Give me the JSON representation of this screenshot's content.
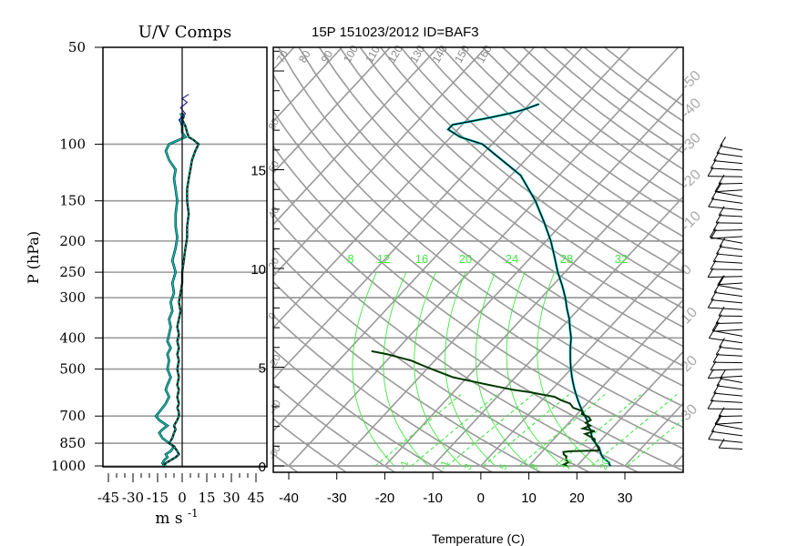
{
  "colors": {
    "grid": "#9a9a9a",
    "u_component": "#00c8c8",
    "v_component": "#003020",
    "wind_trace_blue": "#1a1aa0",
    "temperature": "#000000",
    "temperature_trace_cyan": "#00c8c8",
    "dewpoint": "#003800",
    "mixing_ratio": "#40e840",
    "barb": "#000000"
  },
  "chart_data": [
    {
      "type": "line",
      "name": "uv-components",
      "title": "U/V Comps",
      "xlabel": "m s",
      "xlabel_sup": "-1",
      "ylabel": "P (hPa)",
      "y_scale": "log",
      "xlim": [
        -50,
        50
      ],
      "ylim": [
        1000,
        50
      ],
      "x_tick_labels": [
        "-45",
        "-30",
        "-15",
        "0",
        "15",
        "30",
        "45"
      ],
      "x_ticks": [
        -45,
        -30,
        -15,
        0,
        15,
        30,
        45
      ],
      "y_tick_labels": [
        "50",
        "100",
        "150",
        "200",
        "250",
        "300",
        "400",
        "500",
        "700",
        "850",
        "1000"
      ],
      "y_ticks": [
        50,
        100,
        150,
        200,
        250,
        300,
        400,
        500,
        700,
        850,
        1000
      ],
      "grid": true,
      "series": [
        {
          "key": "u",
          "points": [
            [
              -10,
              1000
            ],
            [
              -12,
              980
            ],
            [
              -11,
              960
            ],
            [
              -9,
              940
            ],
            [
              -10,
              920
            ],
            [
              -7,
              900
            ],
            [
              -5,
              870
            ],
            [
              -8,
              850
            ],
            [
              -12,
              820
            ],
            [
              -14,
              790
            ],
            [
              -12,
              770
            ],
            [
              -9,
              750
            ],
            [
              -14,
              720
            ],
            [
              -16,
              700
            ],
            [
              -14,
              680
            ],
            [
              -12,
              660
            ],
            [
              -10,
              640
            ],
            [
              -8,
              610
            ],
            [
              -10,
              580
            ],
            [
              -9,
              560
            ],
            [
              -7,
              530
            ],
            [
              -9,
              500
            ],
            [
              -8,
              470
            ],
            [
              -9,
              450
            ],
            [
              -7,
              430
            ],
            [
              -9,
              410
            ],
            [
              -8,
              390
            ],
            [
              -7,
              370
            ],
            [
              -8,
              350
            ],
            [
              -6,
              330
            ],
            [
              -7,
              310
            ],
            [
              -5,
              290
            ],
            [
              -6,
              270
            ],
            [
              -4,
              250
            ],
            [
              -6,
              230
            ],
            [
              -4,
              210
            ],
            [
              -3,
              195
            ],
            [
              -4,
              180
            ],
            [
              -4,
              165
            ],
            [
              -3,
              150
            ],
            [
              -4,
              138
            ],
            [
              -5,
              128
            ],
            [
              -4,
              120
            ],
            [
              -8,
              112
            ],
            [
              -10,
              105
            ],
            [
              -8,
              100
            ],
            [
              -2,
              97
            ],
            [
              2,
              95
            ],
            [
              0,
              92
            ],
            [
              0,
              88
            ],
            [
              -1,
              84
            ],
            [
              0,
              82
            ],
            [
              -1,
              80
            ]
          ]
        },
        {
          "key": "v",
          "points": [
            [
              -12,
              1000
            ],
            [
              -10,
              980
            ],
            [
              -7,
              960
            ],
            [
              -4,
              940
            ],
            [
              -2,
              920
            ],
            [
              -3,
              900
            ],
            [
              -5,
              870
            ],
            [
              -8,
              850
            ],
            [
              -6,
              820
            ],
            [
              -5,
              790
            ],
            [
              -4,
              770
            ],
            [
              -5,
              750
            ],
            [
              -3,
              720
            ],
            [
              -2,
              700
            ],
            [
              -2,
              680
            ],
            [
              -3,
              660
            ],
            [
              -2,
              640
            ],
            [
              -3,
              610
            ],
            [
              -2,
              580
            ],
            [
              -3,
              560
            ],
            [
              -2,
              530
            ],
            [
              -3,
              500
            ],
            [
              -2,
              470
            ],
            [
              -3,
              450
            ],
            [
              -2,
              430
            ],
            [
              -3,
              410
            ],
            [
              -2,
              390
            ],
            [
              -3,
              370
            ],
            [
              -2,
              350
            ],
            [
              -1,
              330
            ],
            [
              -2,
              310
            ],
            [
              -1,
              290
            ],
            [
              0,
              270
            ],
            [
              0,
              250
            ],
            [
              1,
              230
            ],
            [
              2,
              210
            ],
            [
              3,
              195
            ],
            [
              3,
              180
            ],
            [
              4,
              165
            ],
            [
              3,
              150
            ],
            [
              3,
              138
            ],
            [
              4,
              128
            ],
            [
              5,
              120
            ],
            [
              6,
              112
            ],
            [
              8,
              105
            ],
            [
              10,
              100
            ],
            [
              7,
              97
            ],
            [
              4,
              95
            ],
            [
              3,
              92
            ],
            [
              2,
              88
            ],
            [
              0,
              84
            ],
            [
              1,
              82
            ],
            [
              0,
              80
            ]
          ]
        }
      ]
    },
    {
      "type": "line",
      "name": "skew-t",
      "title": "15P 151023/2012 ID=BAF3",
      "xlabel": "Temperature (C)",
      "y_scale": "log",
      "ylim": [
        1000,
        50
      ],
      "skew_at_1000": [
        -40,
        40
      ],
      "x_tick_labels": [
        "-40",
        "-30",
        "-20",
        "-10",
        "0",
        "10",
        "20",
        "30"
      ],
      "x_ticks": [
        -40,
        -30,
        -20,
        -10,
        0,
        10,
        20,
        30
      ],
      "height_axis_labels": [
        "0",
        "5",
        "10",
        "15"
      ],
      "height_axis_km": [
        0,
        5,
        10,
        15
      ],
      "theta_labels": [
        "40",
        "50",
        "60",
        "70",
        "80",
        "90",
        "100",
        "110",
        "120",
        "130",
        "140",
        "150",
        "160"
      ],
      "theta_label_values": [
        40,
        50,
        60,
        70,
        80,
        90,
        100,
        110,
        120,
        130,
        140,
        150,
        160
      ],
      "theta_side_labels": [
        "80",
        "60",
        "40",
        "20",
        "0",
        "-20",
        "-40",
        "-60"
      ],
      "isotherm_side_labels": [
        "-50",
        "-40",
        "-30",
        "-20",
        "-10",
        "0",
        "10",
        "20",
        "30"
      ],
      "mixing_ratio_labels": [
        "8",
        "12",
        "16",
        "20",
        "24",
        "28",
        "32"
      ],
      "mixing_ratio_values": [
        8,
        12,
        16,
        20,
        24,
        28,
        32
      ],
      "bottom_green_labels": [
        "-1",
        "-1",
        "3",
        "5",
        "8",
        "13",
        "20"
      ],
      "grid": true,
      "series": [
        {
          "key": "temperature",
          "points": [
            [
              27,
              1000
            ],
            [
              26.5,
              990
            ],
            [
              26,
              975
            ],
            [
              25,
              960
            ],
            [
              24,
              945
            ],
            [
              23,
              925
            ],
            [
              22,
              900
            ],
            [
              21,
              875
            ],
            [
              19.5,
              850
            ],
            [
              18,
              825
            ],
            [
              17,
              800
            ],
            [
              16,
              775
            ],
            [
              14.5,
              750
            ],
            [
              13.5,
              725
            ],
            [
              12,
              700
            ],
            [
              10.5,
              675
            ],
            [
              9,
              650
            ],
            [
              7.5,
              625
            ],
            [
              6,
              600
            ],
            [
              4.5,
              575
            ],
            [
              3,
              550
            ],
            [
              1.5,
              525
            ],
            [
              0,
              500
            ],
            [
              -1.5,
              475
            ],
            [
              -3,
              450
            ],
            [
              -4.5,
              425
            ],
            [
              -6,
              400
            ],
            [
              -8,
              375
            ],
            [
              -10,
              350
            ],
            [
              -12.5,
              325
            ],
            [
              -15,
              300
            ],
            [
              -18,
              275
            ],
            [
              -21.5,
              250
            ],
            [
              -25,
              225
            ],
            [
              -29,
              200
            ],
            [
              -34,
              175
            ],
            [
              -40,
              150
            ],
            [
              -48,
              125
            ],
            [
              -56,
              110
            ],
            [
              -62,
              100
            ],
            [
              -68,
              95
            ],
            [
              -72,
              90
            ],
            [
              -72,
              87
            ],
            [
              -69,
              85
            ],
            [
              -66,
              83
            ],
            [
              -62,
              80
            ],
            [
              -60,
              78
            ],
            [
              -58,
              75
            ]
          ]
        },
        {
          "key": "dewpoint",
          "points": [
            [
              18,
              1000
            ],
            [
              17,
              990
            ],
            [
              17.5,
              975
            ],
            [
              16.5,
              955
            ],
            [
              16,
              935
            ],
            [
              15,
              920
            ],
            [
              14.5,
              905
            ],
            [
              16,
              900
            ],
            [
              21.5,
              895
            ],
            [
              21,
              880
            ],
            [
              20,
              860
            ],
            [
              19,
              840
            ],
            [
              18.5,
              825
            ],
            [
              17,
              810
            ],
            [
              15.5,
              795
            ],
            [
              17,
              780
            ],
            [
              14,
              765
            ],
            [
              15,
              750
            ],
            [
              13.5,
              735
            ],
            [
              14,
              720
            ],
            [
              13,
              705
            ],
            [
              11,
              690
            ],
            [
              10.5,
              675
            ],
            [
              8,
              660
            ],
            [
              6.5,
              640
            ],
            [
              4,
              625
            ],
            [
              2,
              610
            ],
            [
              -1,
              600
            ],
            [
              -4,
              590
            ],
            [
              -8,
              580
            ],
            [
              -11,
              570
            ],
            [
              -14,
              560
            ],
            [
              -17,
              550
            ],
            [
              -20,
              540
            ],
            [
              -23,
              530
            ],
            [
              -25,
              520
            ],
            [
              -27,
              510
            ],
            [
              -29,
              500
            ],
            [
              -31,
              490
            ],
            [
              -33,
              480
            ],
            [
              -35,
              470
            ],
            [
              -38,
              460
            ],
            [
              -41,
              450
            ],
            [
              -45,
              440
            ]
          ]
        }
      ]
    }
  ]
}
